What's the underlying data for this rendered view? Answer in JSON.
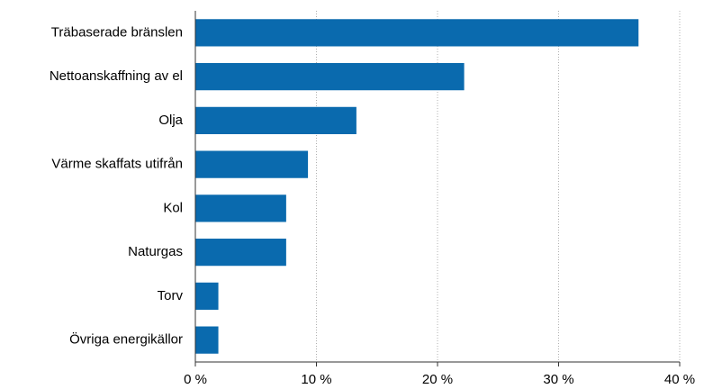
{
  "chart_data": {
    "type": "bar",
    "orientation": "horizontal",
    "categories": [
      "Träbaserade bränslen",
      "Nettoanskaffning av el",
      "Olja",
      "Värme skaffats utifrån",
      "Kol",
      "Naturgas",
      "Torv",
      "Övriga energikällor"
    ],
    "values": [
      36.6,
      22.2,
      13.3,
      9.3,
      7.5,
      7.5,
      1.9,
      1.9
    ],
    "color": "#0a6aae",
    "xlim": [
      0,
      40
    ],
    "xticks": [
      {
        "value": 0,
        "label": "0 %"
      },
      {
        "value": 10,
        "label": "10 %"
      },
      {
        "value": 20,
        "label": "20 %"
      },
      {
        "value": 30,
        "label": "30 %"
      },
      {
        "value": 40,
        "label": "40 %"
      }
    ],
    "grid": true
  }
}
